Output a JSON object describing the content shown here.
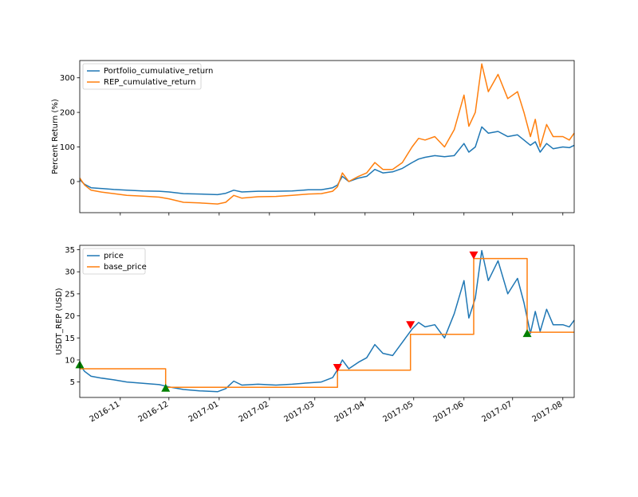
{
  "chart_data": [
    {
      "type": "line",
      "xlabel": "",
      "ylabel": "Percent Return (%)",
      "ylim": [
        -90,
        350
      ],
      "yticks": [
        0,
        100,
        200,
        300
      ],
      "x_range": [
        "2016-10-07",
        "2017-08-08"
      ],
      "xtick_dates": [
        "2016-11-01",
        "2016-12-01",
        "2017-01-01",
        "2017-02-01",
        "2017-03-01",
        "2017-04-01",
        "2017-05-01",
        "2017-06-01",
        "2017-07-01",
        "2017-08-01"
      ],
      "legend_position": "upper-left",
      "series": [
        {
          "name": "Portfolio_cumulative_return",
          "color": "#1f77b4",
          "points": [
            [
              "2016-10-07",
              5
            ],
            [
              "2016-10-10",
              -8
            ],
            [
              "2016-10-14",
              -18
            ],
            [
              "2016-10-20",
              -20
            ],
            [
              "2016-10-28",
              -23
            ],
            [
              "2016-11-05",
              -25
            ],
            [
              "2016-11-15",
              -27
            ],
            [
              "2016-11-25",
              -28
            ],
            [
              "2016-12-01",
              -30
            ],
            [
              "2016-12-10",
              -35
            ],
            [
              "2016-12-20",
              -36
            ],
            [
              "2016-12-31",
              -38
            ],
            [
              "2017-01-05",
              -34
            ],
            [
              "2017-01-10",
              -25
            ],
            [
              "2017-01-15",
              -30
            ],
            [
              "2017-01-25",
              -28
            ],
            [
              "2017-02-05",
              -28
            ],
            [
              "2017-02-15",
              -27
            ],
            [
              "2017-02-25",
              -24
            ],
            [
              "2017-03-05",
              -24
            ],
            [
              "2017-03-12",
              -18
            ],
            [
              "2017-03-15",
              -10
            ],
            [
              "2017-03-18",
              15
            ],
            [
              "2017-03-22",
              0
            ],
            [
              "2017-03-28",
              10
            ],
            [
              "2017-04-02",
              15
            ],
            [
              "2017-04-07",
              35
            ],
            [
              "2017-04-12",
              25
            ],
            [
              "2017-04-18",
              28
            ],
            [
              "2017-04-24",
              38
            ],
            [
              "2017-04-30",
              55
            ],
            [
              "2017-05-04",
              65
            ],
            [
              "2017-05-08",
              70
            ],
            [
              "2017-05-14",
              75
            ],
            [
              "2017-05-20",
              72
            ],
            [
              "2017-05-26",
              75
            ],
            [
              "2017-06-01",
              110
            ],
            [
              "2017-06-04",
              85
            ],
            [
              "2017-06-08",
              100
            ],
            [
              "2017-06-12",
              158
            ],
            [
              "2017-06-16",
              140
            ],
            [
              "2017-06-22",
              145
            ],
            [
              "2017-06-28",
              130
            ],
            [
              "2017-07-04",
              135
            ],
            [
              "2017-07-08",
              120
            ],
            [
              "2017-07-12",
              105
            ],
            [
              "2017-07-15",
              115
            ],
            [
              "2017-07-18",
              85
            ],
            [
              "2017-07-22",
              110
            ],
            [
              "2017-07-26",
              95
            ],
            [
              "2017-08-01",
              100
            ],
            [
              "2017-08-05",
              98
            ],
            [
              "2017-08-08",
              105
            ]
          ]
        },
        {
          "name": "REP_cumulative_return",
          "color": "#ff7f0e",
          "points": [
            [
              "2016-10-07",
              10
            ],
            [
              "2016-10-10",
              -10
            ],
            [
              "2016-10-14",
              -25
            ],
            [
              "2016-10-20",
              -30
            ],
            [
              "2016-10-28",
              -35
            ],
            [
              "2016-11-05",
              -40
            ],
            [
              "2016-11-15",
              -42
            ],
            [
              "2016-11-25",
              -45
            ],
            [
              "2016-12-01",
              -50
            ],
            [
              "2016-12-10",
              -60
            ],
            [
              "2016-12-20",
              -62
            ],
            [
              "2016-12-31",
              -65
            ],
            [
              "2017-01-05",
              -60
            ],
            [
              "2017-01-10",
              -40
            ],
            [
              "2017-01-15",
              -48
            ],
            [
              "2017-01-25",
              -44
            ],
            [
              "2017-02-05",
              -43
            ],
            [
              "2017-02-15",
              -40
            ],
            [
              "2017-02-25",
              -36
            ],
            [
              "2017-03-05",
              -35
            ],
            [
              "2017-03-12",
              -28
            ],
            [
              "2017-03-15",
              -15
            ],
            [
              "2017-03-18",
              25
            ],
            [
              "2017-03-22",
              0
            ],
            [
              "2017-03-28",
              15
            ],
            [
              "2017-04-02",
              25
            ],
            [
              "2017-04-07",
              55
            ],
            [
              "2017-04-12",
              35
            ],
            [
              "2017-04-18",
              35
            ],
            [
              "2017-04-24",
              55
            ],
            [
              "2017-04-30",
              100
            ],
            [
              "2017-05-04",
              125
            ],
            [
              "2017-05-08",
              120
            ],
            [
              "2017-05-14",
              130
            ],
            [
              "2017-05-20",
              100
            ],
            [
              "2017-05-26",
              150
            ],
            [
              "2017-06-01",
              250
            ],
            [
              "2017-06-04",
              160
            ],
            [
              "2017-06-08",
              200
            ],
            [
              "2017-06-12",
              340
            ],
            [
              "2017-06-16",
              260
            ],
            [
              "2017-06-22",
              310
            ],
            [
              "2017-06-28",
              240
            ],
            [
              "2017-07-04",
              260
            ],
            [
              "2017-07-08",
              200
            ],
            [
              "2017-07-12",
              130
            ],
            [
              "2017-07-15",
              180
            ],
            [
              "2017-07-18",
              100
            ],
            [
              "2017-07-22",
              165
            ],
            [
              "2017-07-26",
              130
            ],
            [
              "2017-08-01",
              130
            ],
            [
              "2017-08-05",
              120
            ],
            [
              "2017-08-08",
              140
            ]
          ]
        }
      ]
    },
    {
      "type": "line",
      "xlabel": "",
      "ylabel": "USDT_REP (USD)",
      "ylim": [
        1.5,
        36
      ],
      "yticks": [
        5,
        10,
        15,
        20,
        25,
        30,
        35
      ],
      "x_range": [
        "2016-10-07",
        "2017-08-08"
      ],
      "xtick_dates": [
        "2016-11-01",
        "2016-12-01",
        "2017-01-01",
        "2017-02-01",
        "2017-03-01",
        "2017-04-01",
        "2017-05-01",
        "2017-06-01",
        "2017-07-01",
        "2017-08-01"
      ],
      "xtick_labels": [
        "2016-11",
        "2016-12",
        "2017-01",
        "2017-02",
        "2017-03",
        "2017-04",
        "2017-05",
        "2017-06",
        "2017-07",
        "2017-08"
      ],
      "legend_position": "upper-left",
      "series": [
        {
          "name": "price",
          "color": "#1f77b4",
          "points": [
            [
              "2016-10-07",
              8.9
            ],
            [
              "2016-10-10",
              7.4
            ],
            [
              "2016-10-14",
              6.3
            ],
            [
              "2016-10-20",
              5.9
            ],
            [
              "2016-10-28",
              5.5
            ],
            [
              "2016-11-05",
              5.0
            ],
            [
              "2016-11-15",
              4.7
            ],
            [
              "2016-11-25",
              4.4
            ],
            [
              "2016-12-01",
              3.9
            ],
            [
              "2016-12-10",
              3.3
            ],
            [
              "2016-12-20",
              3.0
            ],
            [
              "2016-12-31",
              2.8
            ],
            [
              "2017-01-05",
              3.5
            ],
            [
              "2017-01-10",
              5.2
            ],
            [
              "2017-01-15",
              4.3
            ],
            [
              "2017-01-25",
              4.5
            ],
            [
              "2017-02-05",
              4.3
            ],
            [
              "2017-02-15",
              4.5
            ],
            [
              "2017-02-25",
              4.8
            ],
            [
              "2017-03-05",
              5.0
            ],
            [
              "2017-03-12",
              6.0
            ],
            [
              "2017-03-15",
              7.8
            ],
            [
              "2017-03-18",
              10.0
            ],
            [
              "2017-03-22",
              8.0
            ],
            [
              "2017-03-28",
              9.5
            ],
            [
              "2017-04-02",
              10.5
            ],
            [
              "2017-04-07",
              13.5
            ],
            [
              "2017-04-12",
              11.5
            ],
            [
              "2017-04-18",
              11.0
            ],
            [
              "2017-04-24",
              14.0
            ],
            [
              "2017-04-30",
              17.0
            ],
            [
              "2017-05-04",
              18.5
            ],
            [
              "2017-05-08",
              17.5
            ],
            [
              "2017-05-14",
              18.0
            ],
            [
              "2017-05-20",
              15.0
            ],
            [
              "2017-05-26",
              20.5
            ],
            [
              "2017-06-01",
              28.0
            ],
            [
              "2017-06-04",
              19.5
            ],
            [
              "2017-06-08",
              24.0
            ],
            [
              "2017-06-12",
              34.8
            ],
            [
              "2017-06-16",
              28.0
            ],
            [
              "2017-06-22",
              32.5
            ],
            [
              "2017-06-28",
              25.0
            ],
            [
              "2017-07-04",
              28.5
            ],
            [
              "2017-07-08",
              23.0
            ],
            [
              "2017-07-12",
              16.0
            ],
            [
              "2017-07-15",
              21.0
            ],
            [
              "2017-07-18",
              16.5
            ],
            [
              "2017-07-22",
              21.5
            ],
            [
              "2017-07-26",
              18.0
            ],
            [
              "2017-08-01",
              18.0
            ],
            [
              "2017-08-05",
              17.5
            ],
            [
              "2017-08-08",
              19.0
            ]
          ]
        },
        {
          "name": "base_price",
          "color": "#ff7f0e",
          "points": [
            [
              "2016-10-07",
              8.0
            ],
            [
              "2016-11-29",
              8.0
            ],
            [
              "2016-11-29",
              3.8
            ],
            [
              "2017-03-15",
              3.8
            ],
            [
              "2017-03-15",
              7.7
            ],
            [
              "2017-04-29",
              7.7
            ],
            [
              "2017-04-29",
              15.8
            ],
            [
              "2017-06-07",
              15.8
            ],
            [
              "2017-06-07",
              33.0
            ],
            [
              "2017-07-10",
              33.0
            ],
            [
              "2017-07-10",
              16.3
            ],
            [
              "2017-08-08",
              16.3
            ]
          ]
        }
      ],
      "markers": [
        {
          "date": "2016-10-07",
          "value": 8.9,
          "kind": "up",
          "color": "#008000"
        },
        {
          "date": "2016-11-29",
          "value": 3.6,
          "kind": "up",
          "color": "#008000"
        },
        {
          "date": "2017-03-15",
          "value": 8.3,
          "kind": "down",
          "color": "#ff0000"
        },
        {
          "date": "2017-04-29",
          "value": 18.0,
          "kind": "down",
          "color": "#ff0000"
        },
        {
          "date": "2017-06-07",
          "value": 33.8,
          "kind": "down",
          "color": "#ff0000"
        },
        {
          "date": "2017-07-10",
          "value": 16.0,
          "kind": "up",
          "color": "#008000"
        }
      ]
    }
  ]
}
